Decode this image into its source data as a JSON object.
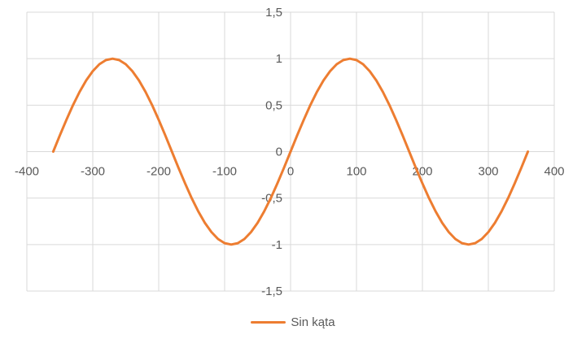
{
  "colors": {
    "series_line": "#ED7D31",
    "gridline": "#D9D9D9",
    "tick_text": "#595959",
    "legend_text": "#595959",
    "background": "#FFFFFF"
  },
  "chart_data": {
    "type": "line",
    "title": "",
    "xlabel": "",
    "ylabel": "",
    "xlim": [
      -400,
      400
    ],
    "ylim": [
      -1.5,
      1.5
    ],
    "grid": true,
    "legend_position": "bottom",
    "x_ticks": [
      {
        "value": -400,
        "label": "-400"
      },
      {
        "value": -300,
        "label": "-300"
      },
      {
        "value": -200,
        "label": "-200"
      },
      {
        "value": -100,
        "label": "-100"
      },
      {
        "value": 0,
        "label": "0"
      },
      {
        "value": 100,
        "label": "100"
      },
      {
        "value": 200,
        "label": "200"
      },
      {
        "value": 300,
        "label": "300"
      },
      {
        "value": 400,
        "label": "400"
      }
    ],
    "y_ticks": [
      {
        "value": 1.5,
        "label": "1,5"
      },
      {
        "value": 1,
        "label": "1"
      },
      {
        "value": 0.5,
        "label": "0,5"
      },
      {
        "value": 0,
        "label": "0"
      },
      {
        "value": -0.5,
        "label": "-0,5"
      },
      {
        "value": -1,
        "label": "-1"
      },
      {
        "value": -1.5,
        "label": "-1,5"
      }
    ],
    "series": [
      {
        "name": "Sin kąta",
        "color": "#ED7D31",
        "x": [
          -360,
          -350,
          -340,
          -330,
          -320,
          -310,
          -300,
          -290,
          -280,
          -270,
          -260,
          -250,
          -240,
          -230,
          -220,
          -210,
          -200,
          -190,
          -180,
          -170,
          -160,
          -150,
          -140,
          -130,
          -120,
          -110,
          -100,
          -90,
          -80,
          -70,
          -60,
          -50,
          -40,
          -30,
          -20,
          -10,
          0,
          10,
          20,
          30,
          40,
          50,
          60,
          70,
          80,
          90,
          100,
          110,
          120,
          130,
          140,
          150,
          160,
          170,
          180,
          190,
          200,
          210,
          220,
          230,
          240,
          250,
          260,
          270,
          280,
          290,
          300,
          310,
          320,
          330,
          340,
          350,
          360
        ],
        "y": [
          0,
          0.174,
          0.342,
          0.5,
          0.643,
          0.766,
          0.866,
          0.94,
          0.985,
          1,
          0.985,
          0.94,
          0.866,
          0.766,
          0.643,
          0.5,
          0.342,
          0.174,
          0,
          -0.174,
          -0.342,
          -0.5,
          -0.643,
          -0.766,
          -0.866,
          -0.94,
          -0.985,
          -1,
          -0.985,
          -0.94,
          -0.866,
          -0.766,
          -0.643,
          -0.5,
          -0.342,
          -0.174,
          0,
          0.174,
          0.342,
          0.5,
          0.643,
          0.766,
          0.866,
          0.94,
          0.985,
          1,
          0.985,
          0.94,
          0.866,
          0.766,
          0.643,
          0.5,
          0.342,
          0.174,
          0,
          -0.174,
          -0.342,
          -0.5,
          -0.643,
          -0.766,
          -0.866,
          -0.94,
          -0.985,
          -1,
          -0.985,
          -0.94,
          -0.866,
          -0.766,
          -0.643,
          -0.5,
          -0.342,
          -0.174,
          0
        ]
      }
    ]
  }
}
